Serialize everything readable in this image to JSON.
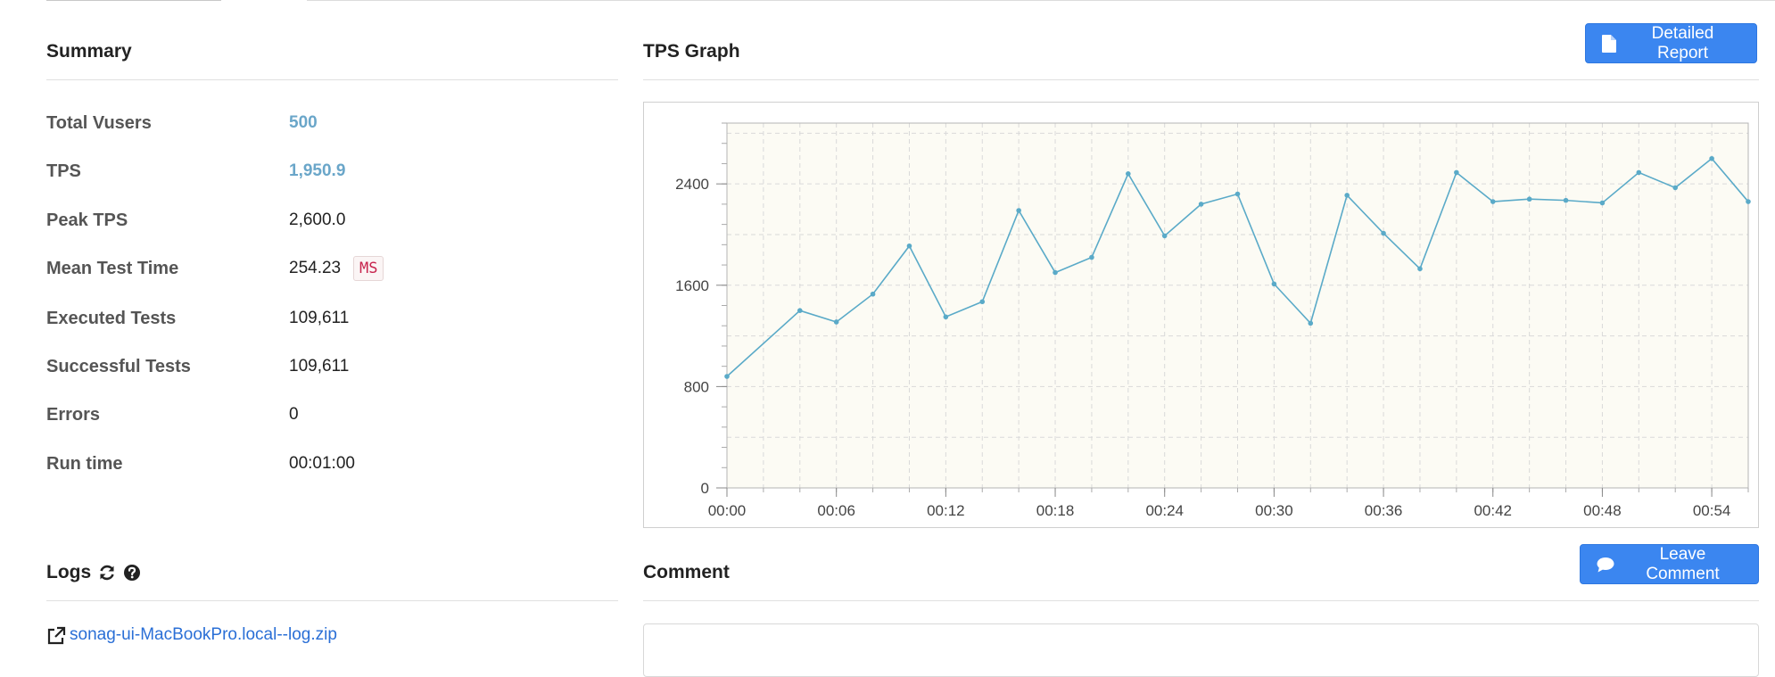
{
  "summary": {
    "title": "Summary",
    "rows": [
      {
        "label": "Total Vusers",
        "value": "500"
      },
      {
        "label": "TPS",
        "value": "1,950.9"
      },
      {
        "label": "Peak TPS",
        "value": "2,600.0"
      },
      {
        "label": "Mean Test Time",
        "value": "254.23",
        "unit": "MS"
      },
      {
        "label": "Executed Tests",
        "value": "109,611"
      },
      {
        "label": "Successful Tests",
        "value": "109,611"
      },
      {
        "label": "Errors",
        "value": "0"
      },
      {
        "label": "Run time",
        "value": "00:01:00"
      }
    ]
  },
  "tps_graph": {
    "title": "TPS Graph",
    "report_button_label": "Detailed Report"
  },
  "logs": {
    "title": "Logs",
    "file_link": "sonag-ui-MacBookPro.local--log.zip"
  },
  "comment": {
    "title": "Comment",
    "button_label": "Leave Comment"
  },
  "colors": {
    "accent": "#3b86f0",
    "highlight_value": "#6aa6c9",
    "series_line": "#5aaac8",
    "plot_background": "#fcfbf4",
    "badge_text": "#c7254e"
  },
  "icons": [
    "document-icon",
    "refresh-icon",
    "question-circle-icon",
    "external-link-icon",
    "comment-icon"
  ],
  "chart_data": {
    "type": "line",
    "x": [
      "00:00",
      "00:04",
      "00:06",
      "00:08",
      "00:10",
      "00:12",
      "00:14",
      "00:16",
      "00:18",
      "00:20",
      "00:22",
      "00:24",
      "00:26",
      "00:28",
      "00:30",
      "00:32",
      "00:34",
      "00:36",
      "00:38",
      "00:40",
      "00:42",
      "00:44",
      "00:46",
      "00:48",
      "00:50",
      "00:52",
      "00:54",
      "00:56"
    ],
    "series": [
      {
        "values": [
          880,
          1400,
          1310,
          1530,
          1910,
          1350,
          1470,
          2190,
          1700,
          1820,
          2480,
          1990,
          2240,
          2320,
          1610,
          1300,
          2310,
          2010,
          1730,
          2490,
          2260,
          2280,
          2270,
          2250,
          2490,
          2370,
          2600,
          2260
        ]
      }
    ],
    "xticks": [
      "00:00",
      "00:06",
      "00:12",
      "00:18",
      "00:24",
      "00:30",
      "00:36",
      "00:42",
      "00:48",
      "00:54"
    ],
    "yticks": [
      0,
      800,
      1600,
      2400
    ],
    "ylim": [
      0,
      2880
    ],
    "xlim": [
      "00:00",
      "00:56"
    ],
    "grid": true,
    "title": "",
    "xlabel": "",
    "ylabel": ""
  }
}
